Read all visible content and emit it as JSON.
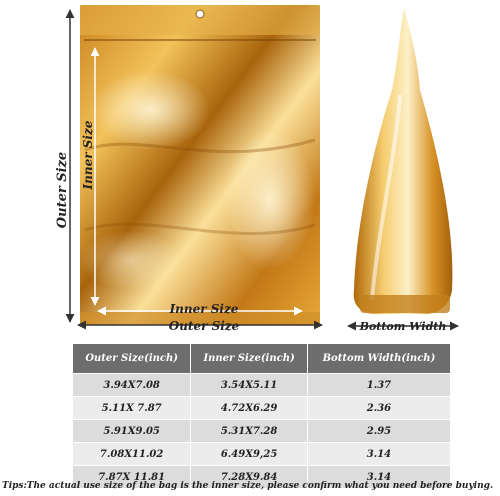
{
  "labels": {
    "outer_size_vertical": "Outer Size",
    "inner_size_vertical": "Inner Size",
    "inner_size_horizontal": "Inner Size",
    "outer_size_horizontal": "Outer Size",
    "bottom_width": "Bottom Width"
  },
  "table": {
    "headers": [
      "Outer Size(inch)",
      "Inner Size(inch)",
      "Bottom Width(inch)"
    ],
    "rows": [
      [
        "3.94X7.08",
        "3.54X5.11",
        "1.37"
      ],
      [
        "5.11X 7.87",
        "4.72X6.29",
        "2.36"
      ],
      [
        "5.91X9.05",
        "5.31X7.28",
        "2.95"
      ],
      [
        "7.08X11.02",
        "6.49X9,25",
        "3.14"
      ],
      [
        "7.87X 11.81",
        "7.28X9.84",
        "3.14"
      ]
    ]
  },
  "tips": "Tips:The actual use size of the bag is the inner size, please confirm what you need before buying.",
  "colors": {
    "gold_dark": "#b06a0a",
    "gold_mid": "#e0a230",
    "gold_light": "#fce6a8",
    "header_bg": "#6d6d6d"
  }
}
